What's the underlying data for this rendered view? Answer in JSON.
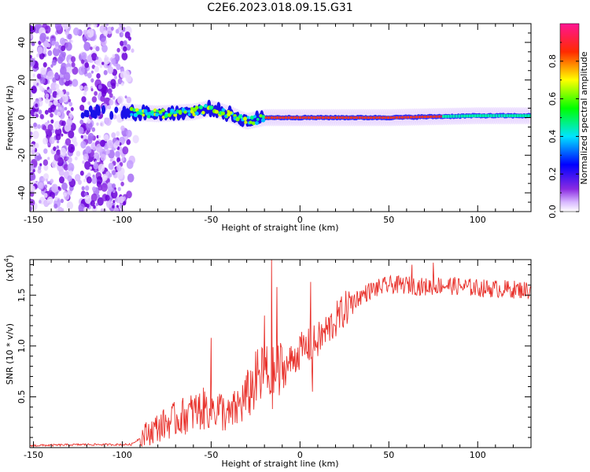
{
  "title": "C2E6.2023.018.09.15.G31",
  "chart_data": [
    {
      "type": "heatmap",
      "xlabel": "Height of straight line (km)",
      "ylabel": "Frequency (Hz)",
      "xlim": [
        -152,
        130
      ],
      "ylim": [
        -50,
        50
      ],
      "xticks": [
        "-150",
        "-100",
        "-50",
        "0",
        "50",
        "100"
      ],
      "xtick_values": [
        -150,
        -100,
        -50,
        0,
        50,
        100
      ],
      "yticks": [
        "-40",
        "-20",
        "0",
        "20",
        "40"
      ],
      "ytick_values": [
        -40,
        -20,
        0,
        20,
        40
      ],
      "colorbar": {
        "label": "Normalized spectral amplitude",
        "ticks": [
          "0.0",
          "0.2",
          "0.4",
          "0.6",
          "0.8"
        ],
        "tick_values": [
          0.0,
          0.2,
          0.4,
          0.6,
          0.8
        ],
        "range": [
          0,
          1
        ]
      },
      "band_center_hz": [
        {
          "x": -130,
          "y": 3
        },
        {
          "x": -100,
          "y": 3
        },
        {
          "x": -80,
          "y": 2
        },
        {
          "x": -60,
          "y": 3
        },
        {
          "x": -50,
          "y": 5
        },
        {
          "x": -40,
          "y": 2
        },
        {
          "x": -30,
          "y": -2
        },
        {
          "x": -20,
          "y": 0
        },
        {
          "x": 0,
          "y": 0
        },
        {
          "x": 50,
          "y": 0
        },
        {
          "x": 100,
          "y": 1
        },
        {
          "x": 130,
          "y": 1
        }
      ]
    },
    {
      "type": "line",
      "xlabel": "Height of straight line (km)",
      "ylabel": "SNR (10 * v/v)",
      "multiplier": "(x10",
      "multiplier_exp": "4",
      "multiplier_close": ")",
      "xlim": [
        -152,
        130
      ],
      "ylim": [
        0,
        1.85
      ],
      "xticks": [
        "-150",
        "-100",
        "-50",
        "0",
        "50",
        "100"
      ],
      "xtick_values": [
        -150,
        -100,
        -50,
        0,
        50,
        100
      ],
      "yticks": [
        "0.5",
        "1.0",
        "1.5"
      ],
      "ytick_values": [
        0.5,
        1.0,
        1.5
      ],
      "color": "#e8302a",
      "series_trend": [
        {
          "x": -152,
          "y": 0.02
        },
        {
          "x": -120,
          "y": 0.03
        },
        {
          "x": -95,
          "y": 0.03
        },
        {
          "x": -88,
          "y": 0.12
        },
        {
          "x": -80,
          "y": 0.2
        },
        {
          "x": -70,
          "y": 0.28
        },
        {
          "x": -60,
          "y": 0.35
        },
        {
          "x": -50,
          "y": 0.4
        },
        {
          "x": -45,
          "y": 0.38
        },
        {
          "x": -40,
          "y": 0.3
        },
        {
          "x": -30,
          "y": 0.5
        },
        {
          "x": -25,
          "y": 0.65
        },
        {
          "x": -20,
          "y": 0.72
        },
        {
          "x": -15,
          "y": 0.68
        },
        {
          "x": -10,
          "y": 0.75
        },
        {
          "x": 0,
          "y": 0.95
        },
        {
          "x": 10,
          "y": 1.05
        },
        {
          "x": 20,
          "y": 1.25
        },
        {
          "x": 30,
          "y": 1.45
        },
        {
          "x": 40,
          "y": 1.55
        },
        {
          "x": 50,
          "y": 1.6
        },
        {
          "x": 60,
          "y": 1.6
        },
        {
          "x": 70,
          "y": 1.58
        },
        {
          "x": 80,
          "y": 1.6
        },
        {
          "x": 100,
          "y": 1.57
        },
        {
          "x": 130,
          "y": 1.55
        }
      ],
      "spikes": [
        {
          "x": -20,
          "y": 1.3
        },
        {
          "x": -16,
          "y": 1.85
        },
        {
          "x": -50,
          "y": 1.08
        },
        {
          "x": -13,
          "y": 1.58
        },
        {
          "x": 6,
          "y": 1.63
        },
        {
          "x": 7,
          "y": 0.55
        },
        {
          "x": 75,
          "y": 1.82
        },
        {
          "x": 63,
          "y": 1.8
        }
      ]
    }
  ]
}
